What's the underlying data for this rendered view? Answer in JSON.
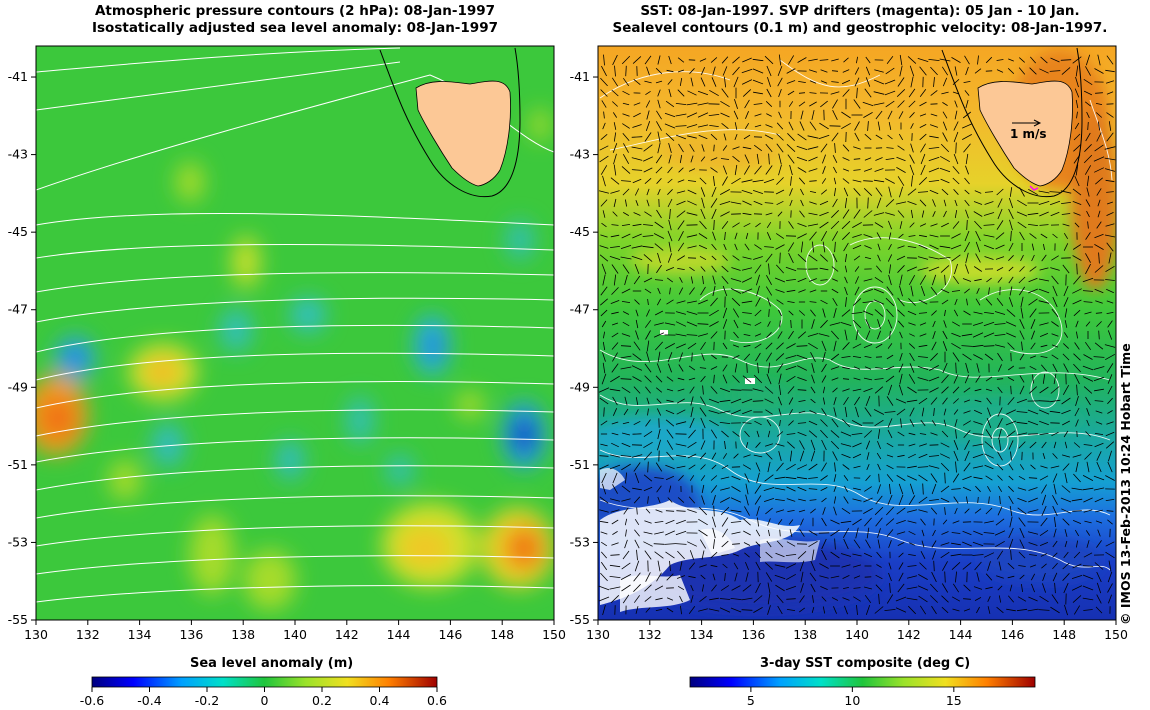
{
  "left_panel": {
    "title_line1": "Atmospheric pressure contours (2 hPa): 08-Jan-1997",
    "title_line2": "Isostatically adjusted sea level anomaly: 08-Jan-1997",
    "lon_ticks": [
      "130",
      "132",
      "134",
      "136",
      "138",
      "140",
      "142",
      "144",
      "146",
      "148",
      "150"
    ],
    "lat_ticks": [
      "-41",
      "-43",
      "-45",
      "-47",
      "-49",
      "-51",
      "-53",
      "-55"
    ],
    "colorbar": {
      "title": "Sea level anomaly (m)",
      "ticks": [
        "-0.6",
        "-0.4",
        "-0.2",
        "0",
        "0.2",
        "0.4",
        "0.6"
      ],
      "range": [
        -0.6,
        0.6
      ]
    }
  },
  "right_panel": {
    "title_line1": "SST: 08-Jan-1997. SVP drifters (magenta): 05 Jan - 10 Jan.",
    "title_line2": "Sealevel contours (0.1 m) and geostrophic velocity: 08-Jan-1997.",
    "lon_ticks": [
      "130",
      "132",
      "134",
      "136",
      "138",
      "140",
      "142",
      "144",
      "146",
      "148",
      "150"
    ],
    "lat_ticks": [
      "-41",
      "-43",
      "-45",
      "-47",
      "-49",
      "-51",
      "-53",
      "-55"
    ],
    "scale_label": "1 m/s",
    "colorbar": {
      "title": "3-day SST composite (deg C)",
      "ticks": [
        "5",
        "10",
        "15"
      ],
      "range": [
        2,
        19
      ]
    }
  },
  "credit": "© IMOS 13-Feb-2013 10:24 Hobart Time",
  "map_extent": {
    "lon": [
      130,
      150
    ],
    "lat": [
      -55,
      -40.2
    ]
  },
  "colors": {
    "land": "#fcc896",
    "coast": "#000000",
    "contour": "#ffffff",
    "arrow": "#000000",
    "no_data": "#ffffff"
  }
}
